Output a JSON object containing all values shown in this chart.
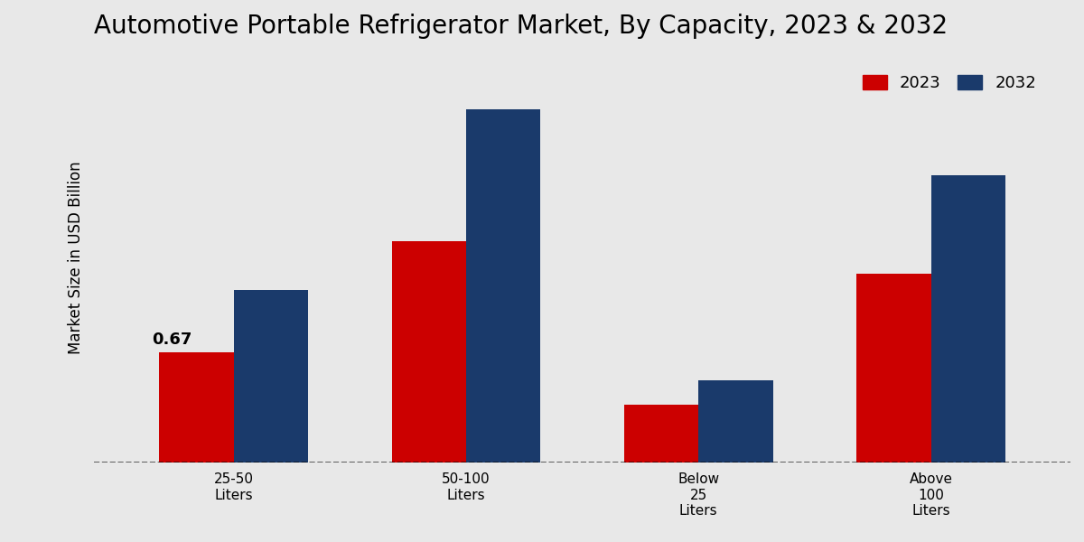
{
  "title": "Automotive Portable Refrigerator Market, By Capacity, 2023 & 2032",
  "ylabel": "Market Size in USD Billion",
  "categories": [
    "25-50\nLiters",
    "50-100\nLiters",
    "Below\n25\nLiters",
    "Above\n100\nLiters"
  ],
  "values_2023": [
    0.67,
    1.35,
    0.35,
    1.15
  ],
  "values_2032": [
    1.05,
    2.15,
    0.5,
    1.75
  ],
  "color_2023": "#cc0000",
  "color_2032": "#1a3a6b",
  "bar_width": 0.32,
  "annotation_label": "0.67",
  "annotation_bar_index": 0,
  "ylim": [
    0,
    2.5
  ],
  "legend_labels": [
    "2023",
    "2032"
  ],
  "background_color": "#e8e8e8",
  "title_fontsize": 20,
  "label_fontsize": 12,
  "tick_fontsize": 11,
  "legend_fontsize": 13
}
